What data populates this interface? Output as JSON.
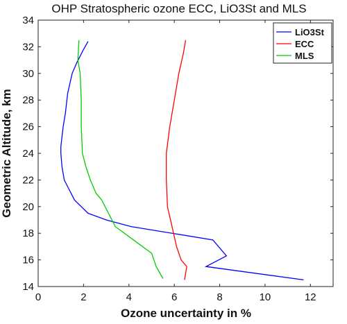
{
  "chart_data": {
    "type": "line",
    "title": "OHP Stratospheric ozone ECC, LiO3St and MLS",
    "xlabel": "Ozone uncertainty in %",
    "ylabel": "Geometric Altitude, km",
    "xlim": [
      0,
      13
    ],
    "ylim": [
      14,
      34
    ],
    "xticks": [
      0,
      2,
      4,
      6,
      8,
      10,
      12
    ],
    "yticks": [
      14,
      16,
      18,
      20,
      22,
      24,
      26,
      28,
      30,
      32,
      34
    ],
    "grid": false,
    "legend_position": "top-right",
    "series": [
      {
        "name": "LiO3St",
        "color": "#0000ff",
        "points": [
          [
            2.2,
            32.4
          ],
          [
            2.0,
            31.8
          ],
          [
            1.7,
            30.8
          ],
          [
            1.5,
            30.0
          ],
          [
            1.3,
            28.5
          ],
          [
            1.2,
            27.0
          ],
          [
            1.1,
            26.0
          ],
          [
            1.0,
            24.5
          ],
          [
            1.0,
            24.0
          ],
          [
            1.05,
            23.0
          ],
          [
            1.15,
            22.0
          ],
          [
            1.3,
            21.5
          ],
          [
            1.6,
            20.5
          ],
          [
            1.9,
            20.0
          ],
          [
            2.2,
            19.5
          ],
          [
            3.0,
            19.0
          ],
          [
            4.1,
            18.5
          ],
          [
            7.7,
            17.5
          ],
          [
            8.3,
            16.3
          ],
          [
            7.4,
            15.5
          ],
          [
            11.7,
            14.5
          ]
        ]
      },
      {
        "name": "ECC",
        "color": "#ff0000",
        "points": [
          [
            6.5,
            32.5
          ],
          [
            6.4,
            31.5
          ],
          [
            6.2,
            30.0
          ],
          [
            6.0,
            28.0
          ],
          [
            5.8,
            26.0
          ],
          [
            5.65,
            24.0
          ],
          [
            5.65,
            22.0
          ],
          [
            5.7,
            20.0
          ],
          [
            5.9,
            18.5
          ],
          [
            6.1,
            17.0
          ],
          [
            6.3,
            16.0
          ],
          [
            6.55,
            15.5
          ],
          [
            6.45,
            14.5
          ]
        ]
      },
      {
        "name": "MLS",
        "color": "#00cc00",
        "points": [
          [
            1.8,
            32.5
          ],
          [
            1.75,
            31.0
          ],
          [
            1.85,
            30.0
          ],
          [
            1.9,
            28.0
          ],
          [
            1.9,
            26.0
          ],
          [
            1.95,
            24.0
          ],
          [
            2.1,
            23.0
          ],
          [
            2.3,
            22.0
          ],
          [
            2.55,
            21.0
          ],
          [
            2.8,
            20.5
          ],
          [
            3.1,
            19.5
          ],
          [
            3.4,
            18.5
          ],
          [
            4.2,
            17.5
          ],
          [
            5.0,
            16.5
          ],
          [
            5.2,
            15.5
          ],
          [
            5.5,
            14.6
          ]
        ]
      }
    ]
  }
}
